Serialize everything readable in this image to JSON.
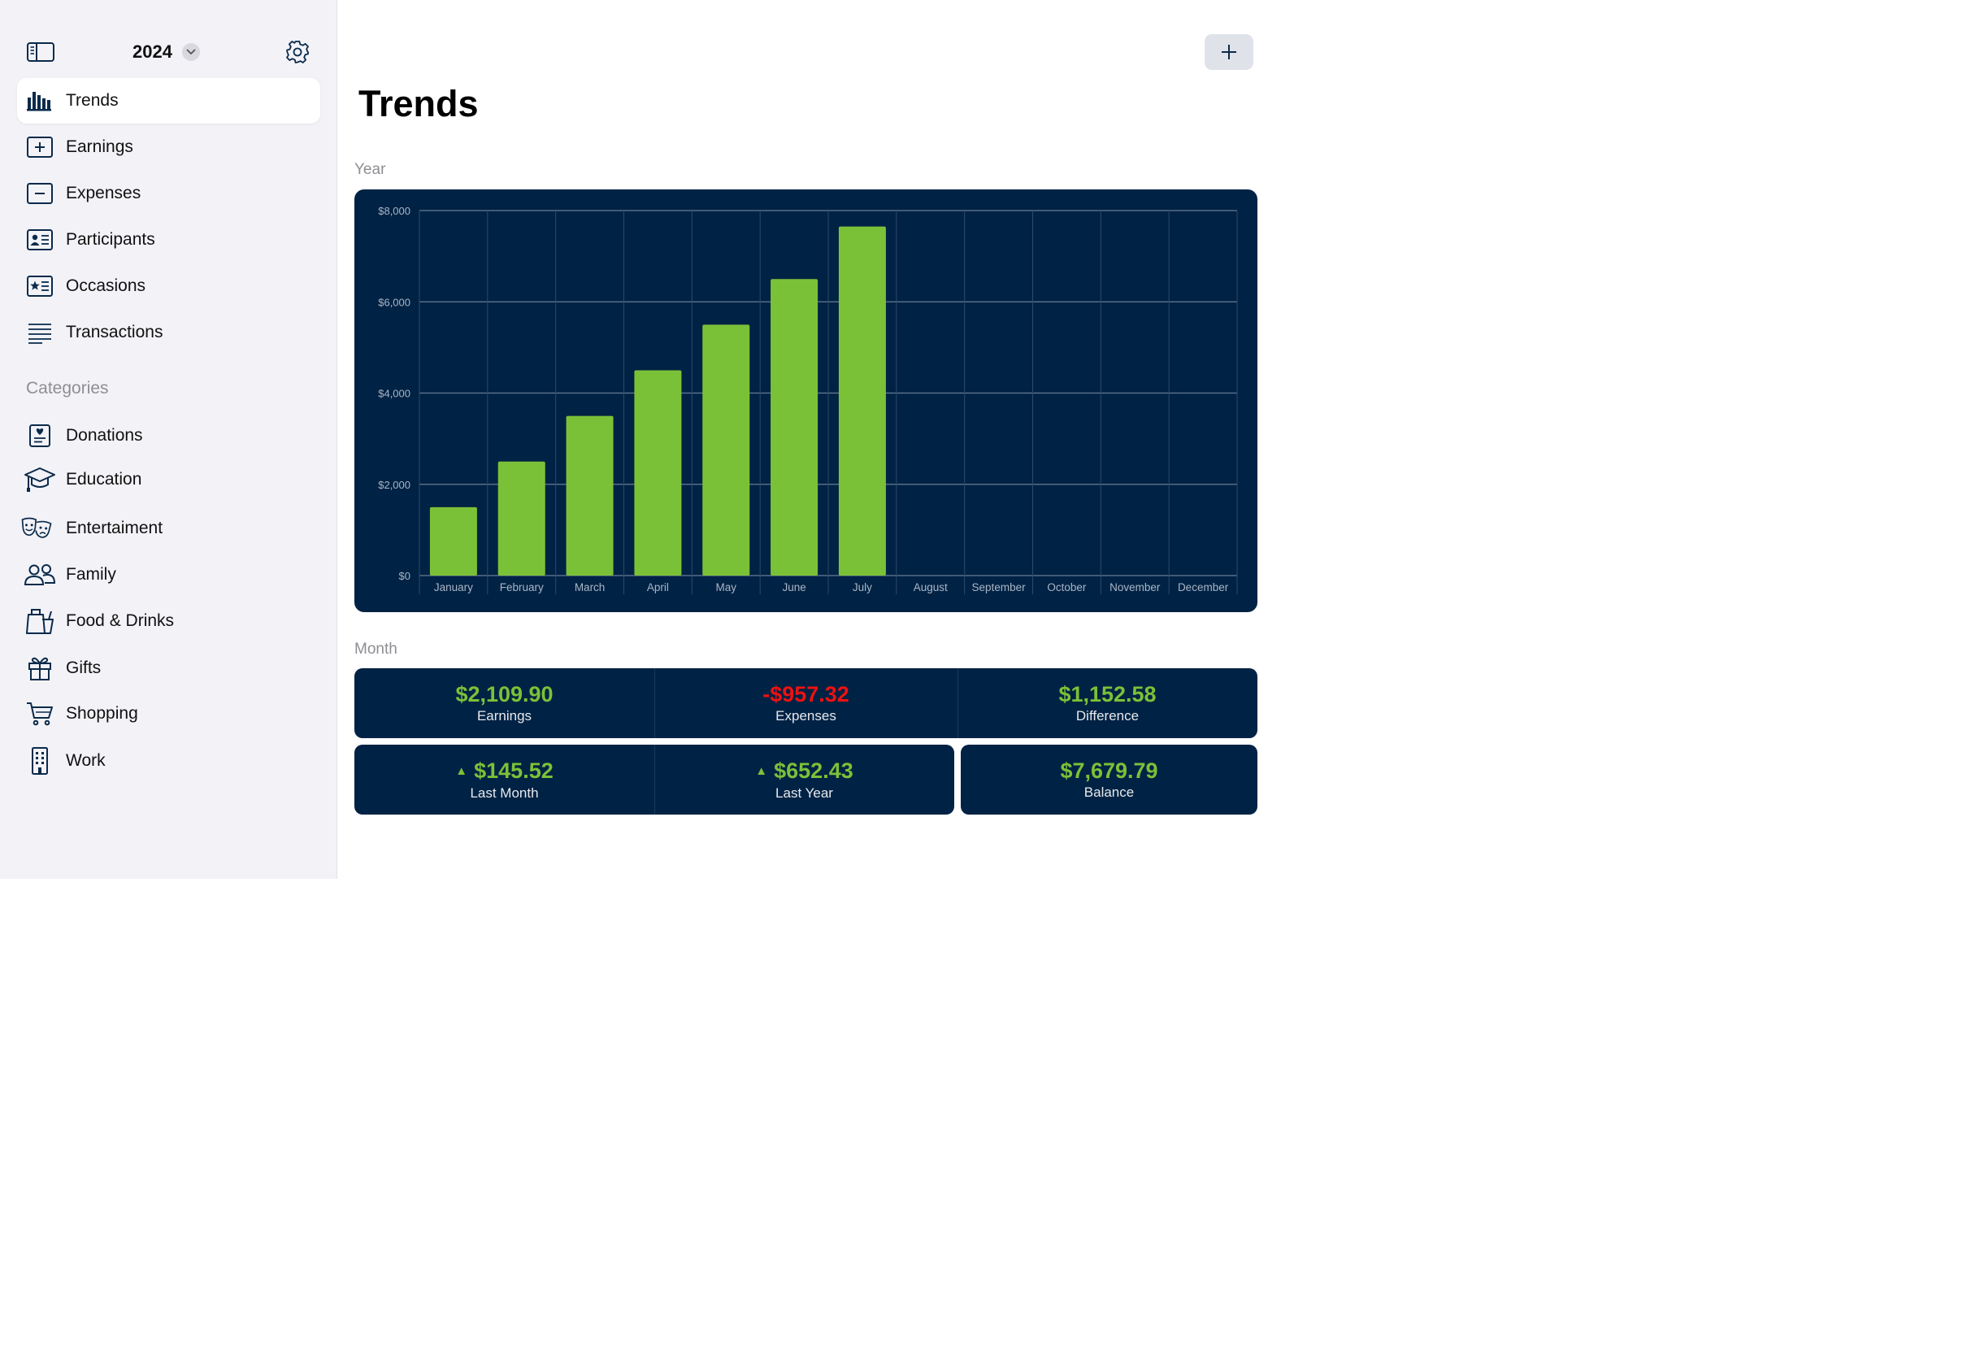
{
  "sidebar": {
    "year": "2024",
    "nav": [
      {
        "label": "Trends",
        "icon": "bar-chart-icon",
        "active": true
      },
      {
        "label": "Earnings",
        "icon": "plus-square-icon"
      },
      {
        "label": "Expenses",
        "icon": "minus-square-icon"
      },
      {
        "label": "Participants",
        "icon": "person-card-icon"
      },
      {
        "label": "Occasions",
        "icon": "star-card-icon"
      },
      {
        "label": "Transactions",
        "icon": "list-icon"
      }
    ],
    "categories_heading": "Categories",
    "categories": [
      {
        "label": "Donations",
        "icon": "heart-document-icon"
      },
      {
        "label": "Education",
        "icon": "graduation-cap-icon"
      },
      {
        "label": "Entertaiment",
        "icon": "theater-masks-icon"
      },
      {
        "label": "Family",
        "icon": "people-icon"
      },
      {
        "label": "Food & Drinks",
        "icon": "bag-drink-icon"
      },
      {
        "label": "Gifts",
        "icon": "gift-icon"
      },
      {
        "label": "Shopping",
        "icon": "cart-icon"
      },
      {
        "label": "Work",
        "icon": "building-icon"
      }
    ]
  },
  "main": {
    "title": "Trends",
    "year_section": "Year",
    "month_section": "Month",
    "add_icon": "plus-icon"
  },
  "chart_data": {
    "type": "bar",
    "categories": [
      "January",
      "February",
      "March",
      "April",
      "May",
      "June",
      "July",
      "August",
      "September",
      "October",
      "November",
      "December"
    ],
    "values": [
      1500,
      2500,
      3500,
      4500,
      5500,
      6500,
      7650,
      null,
      null,
      null,
      null,
      null
    ],
    "ylim": [
      0,
      8000
    ],
    "yticks": [
      0,
      2000,
      4000,
      6000,
      8000
    ],
    "ytick_labels": [
      "$0",
      "$2,000",
      "$4,000",
      "$6,000",
      "$8,000"
    ],
    "grid": true,
    "colors": {
      "bar": "#7bc138",
      "background": "#002244",
      "grid": "#8a9bb0",
      "tick_text": "#aab6c6"
    }
  },
  "stats": {
    "earnings": {
      "value": "$2,109.90",
      "label": "Earnings"
    },
    "expenses": {
      "value": "-$957.32",
      "label": "Expenses"
    },
    "difference": {
      "value": "$1,152.58",
      "label": "Difference"
    },
    "last_month": {
      "arrow": "▲",
      "value": "$145.52",
      "label": "Last Month"
    },
    "last_year": {
      "arrow": "▲",
      "value": "$652.43",
      "label": "Last Year"
    },
    "balance": {
      "value": "$7,679.79",
      "label": "Balance"
    }
  },
  "colors": {
    "positive": "#7bc138",
    "negative": "#ee1111",
    "card": "#002244",
    "sidebar": "#f2f2f7"
  }
}
